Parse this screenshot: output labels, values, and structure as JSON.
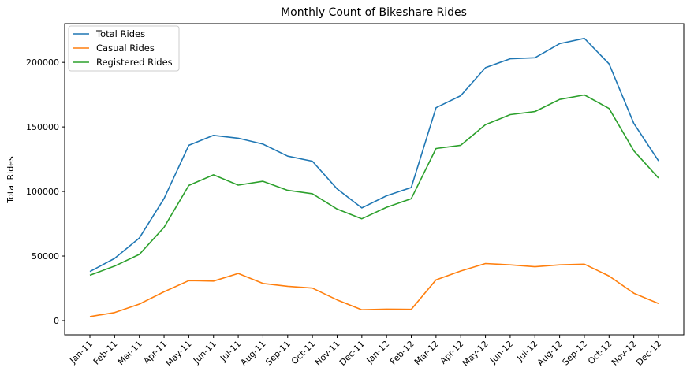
{
  "chart_data": {
    "type": "line",
    "title": "Monthly Count of Bikeshare Rides",
    "xlabel": "",
    "ylabel": "Total Rides",
    "categories": [
      "Jan-11",
      "Feb-11",
      "Mar-11",
      "Apr-11",
      "May-11",
      "Jun-11",
      "Jul-11",
      "Aug-11",
      "Sep-11",
      "Oct-11",
      "Nov-11",
      "Dec-11",
      "Jan-12",
      "Feb-12",
      "Mar-12",
      "Apr-12",
      "May-12",
      "Jun-12",
      "Jul-12",
      "Aug-12",
      "Sep-12",
      "Oct-12",
      "Nov-12",
      "Dec-12"
    ],
    "ylim": [
      -11000,
      230000
    ],
    "yticks": [
      0,
      50000,
      100000,
      150000,
      200000
    ],
    "ytick_labels": [
      "0",
      "50000",
      "100000",
      "150000",
      "200000"
    ],
    "legend_position": "top-left",
    "grid": false,
    "series": [
      {
        "name": "Total Rides",
        "color": "#1f77b4",
        "values": [
          38000,
          48200,
          64000,
          94500,
          135800,
          143500,
          141300,
          136700,
          127400,
          123500,
          102000,
          87300,
          96700,
          103100,
          164900,
          174200,
          195900,
          202800,
          203600,
          214500,
          218600,
          198800,
          152700,
          123700
        ]
      },
      {
        "name": "Casual Rides",
        "color": "#ff7f0e",
        "values": [
          3100,
          6200,
          12800,
          22300,
          31000,
          30600,
          36500,
          28800,
          26600,
          25200,
          16000,
          8400,
          8900,
          8700,
          31600,
          38400,
          44200,
          43200,
          41700,
          43200,
          43700,
          34500,
          21200,
          13200
        ]
      },
      {
        "name": "Registered Rides",
        "color": "#2ca02c",
        "values": [
          35100,
          42200,
          51300,
          72200,
          104700,
          112900,
          104900,
          107900,
          100900,
          98300,
          86400,
          78900,
          87800,
          94400,
          133300,
          135800,
          151700,
          159500,
          161900,
          171300,
          174800,
          164300,
          131500,
          110500
        ]
      }
    ]
  }
}
